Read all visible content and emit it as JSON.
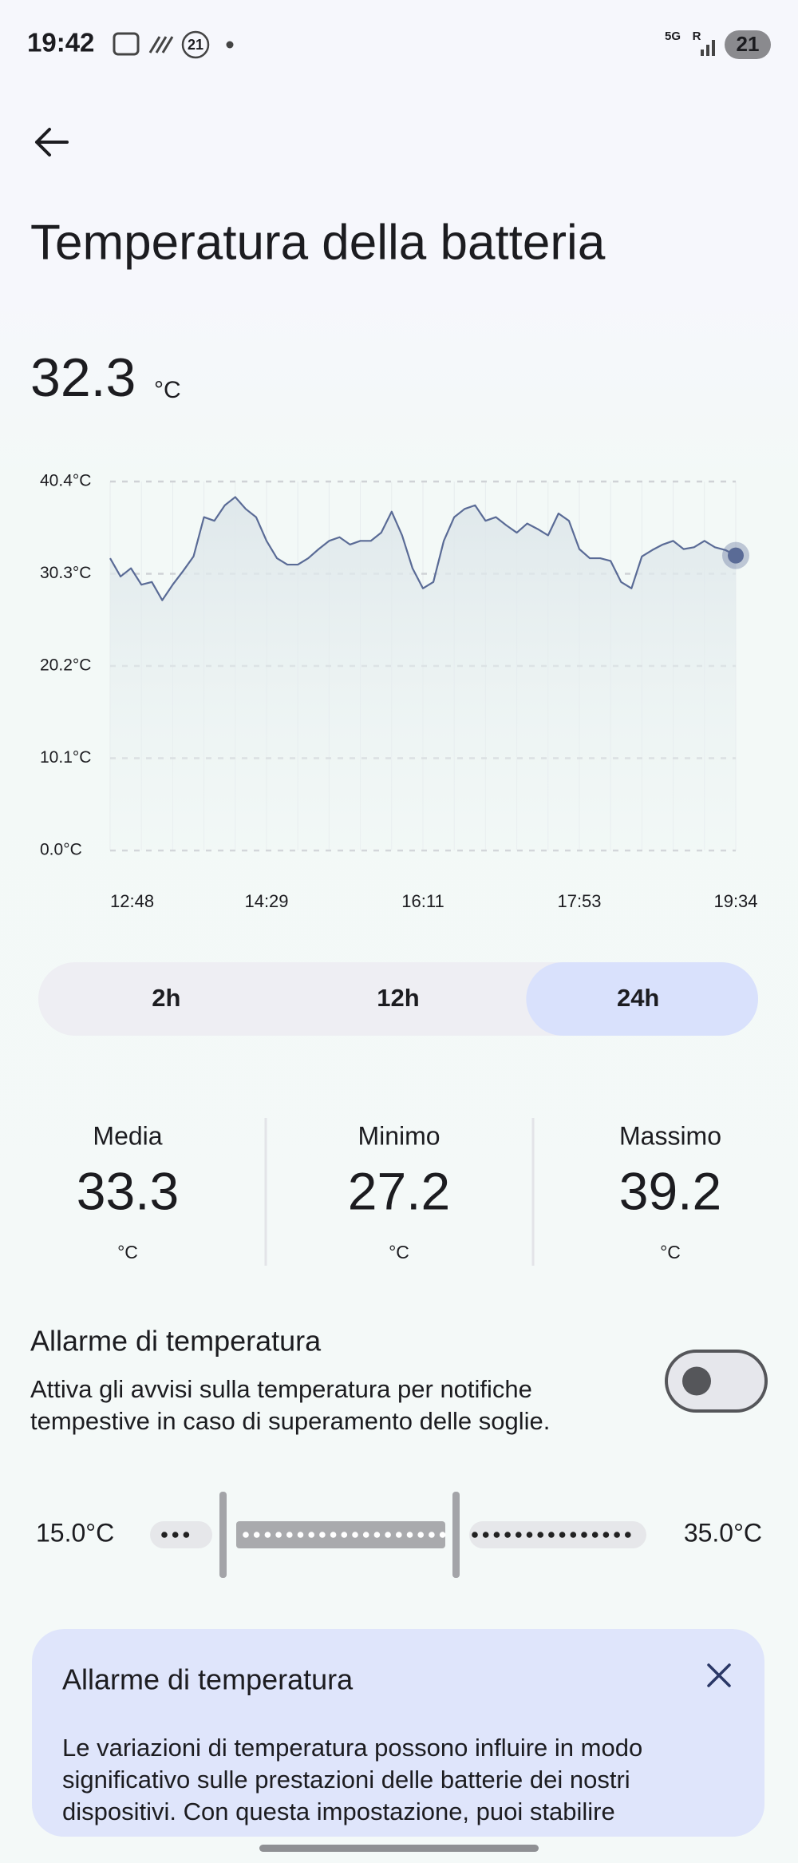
{
  "status_bar": {
    "time": "19:42",
    "notification_badge": "21",
    "network": "5G",
    "roaming": "R",
    "battery": "21"
  },
  "header": {
    "title": "Temperatura della batteria"
  },
  "current": {
    "value": "32.3",
    "unit": "°C"
  },
  "chart_data": {
    "type": "line",
    "categories": [
      "12:48",
      null,
      null,
      null,
      null,
      null,
      null,
      null,
      null,
      null,
      null,
      null,
      null,
      null,
      null,
      "14:29",
      null,
      null,
      null,
      null,
      null,
      null,
      null,
      null,
      null,
      null,
      null,
      null,
      null,
      null,
      "16:11",
      null,
      null,
      null,
      null,
      null,
      null,
      null,
      null,
      null,
      null,
      null,
      null,
      null,
      null,
      "17:53",
      null,
      null,
      null,
      null,
      null,
      null,
      null,
      null,
      null,
      null,
      null,
      null,
      null,
      null,
      "19:34"
    ],
    "series": [
      {
        "color": "#5a6b96",
        "values": [
          32.0,
          30.0,
          30.9,
          29.1,
          29.4,
          27.4,
          29.1,
          30.6,
          32.2,
          36.5,
          36.1,
          37.8,
          38.7,
          37.4,
          36.5,
          33.9,
          32.0,
          31.3,
          31.3,
          32.0,
          33.0,
          33.9,
          34.3,
          33.5,
          33.9,
          33.9,
          34.8,
          37.1,
          34.5,
          30.9,
          28.7,
          29.4,
          33.9,
          36.5,
          37.4,
          37.8,
          36.1,
          36.5,
          35.6,
          34.8,
          35.8,
          35.2,
          34.5,
          36.9,
          36.1,
          33.0,
          32.0,
          32.0,
          31.7,
          29.4,
          28.7,
          32.2,
          32.9,
          33.5,
          33.9,
          33.0,
          33.2,
          33.9,
          33.2,
          32.9,
          32.3
        ]
      }
    ],
    "ylim": [
      0,
      40.4
    ],
    "yticks": [
      {
        "value": 0,
        "label": "0.0°C"
      },
      {
        "value": 10.1,
        "label": "10.1°C"
      },
      {
        "value": 20.2,
        "label": "20.2°C"
      },
      {
        "value": 30.3,
        "label": "30.3°C"
      },
      {
        "value": 40.4,
        "label": "40.4°C"
      }
    ],
    "grid": true
  },
  "range_selector": {
    "options": [
      "2h",
      "12h",
      "24h"
    ],
    "selected_index": 2
  },
  "stats": [
    {
      "label": "Media",
      "value": "33.3",
      "unit": "°C"
    },
    {
      "label": "Minimo",
      "value": "27.2",
      "unit": "°C"
    },
    {
      "label": "Massimo",
      "value": "39.2",
      "unit": "°C"
    }
  ],
  "alarm": {
    "title": "Allarme di temperatura",
    "description": [
      "Attiva gli avvisi sulla temperatura per notifiche",
      "tempestive in caso di superamento delle soglie."
    ],
    "enabled": false,
    "min_label": "15.0°C",
    "max_label": "35.0°C"
  },
  "info_card": {
    "title": "Allarme di temperatura",
    "text": [
      "Le variazioni di temperatura possono influire in modo",
      "significativo sulle prestazioni delle batterie dei nostri",
      "dispositivi. Con questa impostazione, puoi stabilire"
    ]
  }
}
